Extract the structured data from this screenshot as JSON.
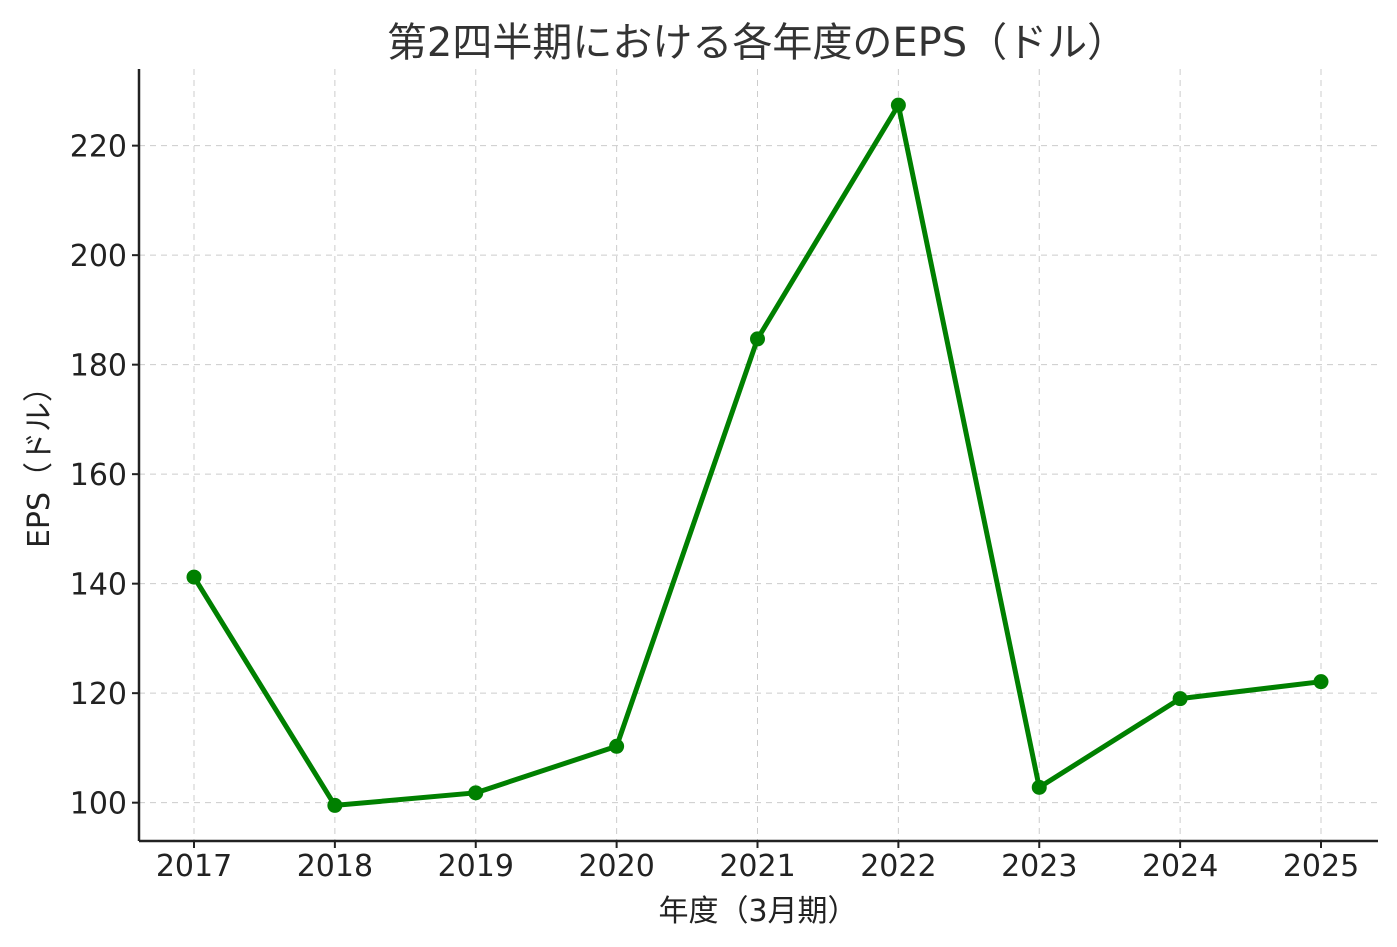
{
  "chart_data": {
    "type": "line",
    "title": "第2四半期における各年度のEPS（ドル）",
    "xlabel": "年度（3月期）",
    "ylabel": "EPS（ドル）",
    "x": [
      2017,
      2018,
      2019,
      2020,
      2021,
      2022,
      2023,
      2024,
      2025
    ],
    "x_tick_labels": [
      "2017",
      "2018",
      "2019",
      "2020",
      "2021",
      "2022",
      "2023",
      "2024",
      "2025"
    ],
    "y_ticks": [
      100,
      120,
      140,
      160,
      180,
      200,
      220
    ],
    "y_tick_labels": [
      "100",
      "120",
      "140",
      "160",
      "180",
      "200",
      "220"
    ],
    "ylim": [
      93,
      234
    ],
    "grid": true,
    "series": [
      {
        "values": [
          141.2,
          99.5,
          101.8,
          110.3,
          184.7,
          227.4,
          102.8,
          119.0,
          122.1
        ],
        "color": "#008000"
      }
    ]
  }
}
